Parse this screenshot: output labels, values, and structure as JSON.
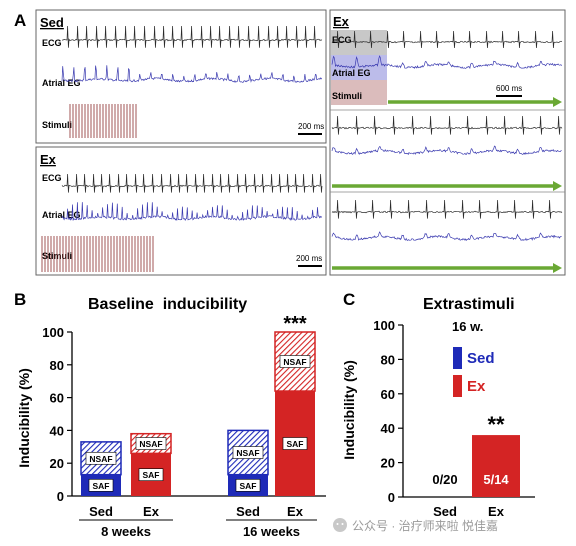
{
  "panel_a": {
    "letter": "A",
    "sed_panel": {
      "title": "Sed",
      "trace_labels": [
        "ECG",
        "Atrial EG",
        "Stimuli"
      ],
      "scale_label": "200 ms"
    },
    "ex_panel": {
      "title": "Ex",
      "trace_labels": [
        "ECG",
        "Atrial EG",
        "Stimuli"
      ],
      "scale_label": "200 ms"
    },
    "ex_long_panel": {
      "title": "Ex",
      "trace_labels": [
        "ECG",
        "Atrial EG",
        "Stimuli"
      ],
      "scale_label": "600 ms"
    },
    "colors": {
      "ecg": "#2a2a2a",
      "atrial": "#3b3bb0",
      "stimuli": "#8b2a2a",
      "marker": "#6aa834"
    }
  },
  "chart_data": [
    {
      "panel": "B",
      "type": "bar",
      "title": "Baseline  inducibility",
      "ylabel": "Inducibility (%)",
      "ylim": [
        0,
        100
      ],
      "yticks": [
        0,
        20,
        40,
        60,
        80,
        100
      ],
      "categories": [
        "Sed",
        "Ex",
        "Sed",
        "Ex"
      ],
      "groups": [
        {
          "label": "8 weeks",
          "categories": [
            "Sed",
            "Ex"
          ]
        },
        {
          "label": "16 weeks",
          "categories": [
            "Sed",
            "Ex"
          ]
        }
      ],
      "series": [
        {
          "name": "SAF",
          "values": [
            13,
            26,
            13,
            64
          ]
        },
        {
          "name": "NSAF",
          "values": [
            20,
            12,
            27,
            36
          ]
        }
      ],
      "totals": [
        33,
        38,
        40,
        100
      ],
      "annotations": [
        {
          "category_index": 3,
          "text": "***"
        }
      ],
      "colors": {
        "Sed": "#1e2ab8",
        "Ex": "#d42424"
      }
    },
    {
      "panel": "C",
      "type": "bar",
      "title": "Extrastimuli",
      "subtitle": "16 w.",
      "ylabel": "Inducibility (%)",
      "ylim": [
        0,
        100
      ],
      "yticks": [
        0,
        20,
        40,
        60,
        80,
        100
      ],
      "categories": [
        "Sed",
        "Ex"
      ],
      "values": [
        0,
        36
      ],
      "data_labels": [
        "0/20",
        "5/14"
      ],
      "legend": [
        {
          "label": "Sed",
          "color": "#1e2ab8"
        },
        {
          "label": "Ex",
          "color": "#d42424"
        }
      ],
      "annotations": [
        {
          "category_index": 1,
          "text": "**"
        }
      ]
    }
  ],
  "watermark": "公众号 · 治疗师来啦 悦佳嘉"
}
